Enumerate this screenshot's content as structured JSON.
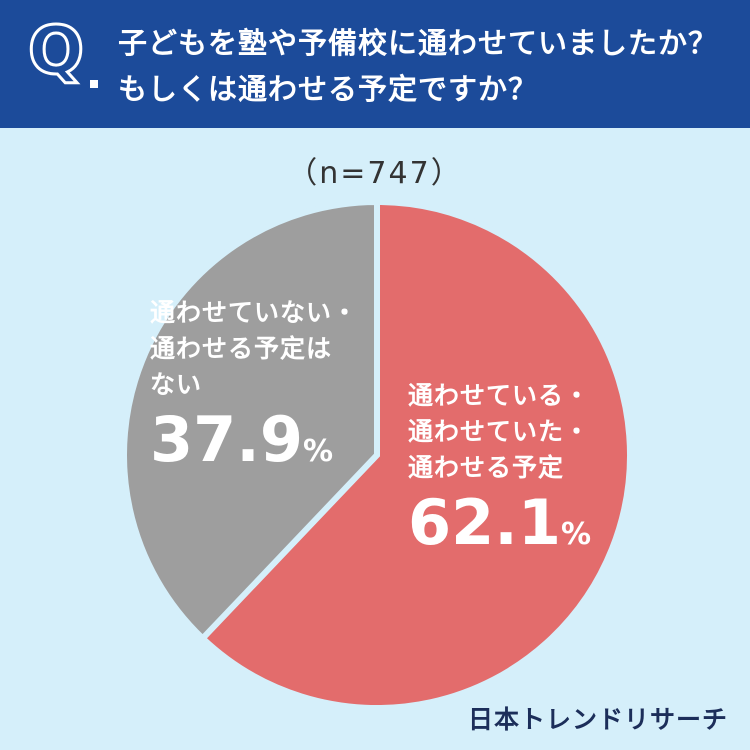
{
  "question": {
    "mark": "Q",
    "line1": "子どもを塾や予備校に通わせていましたか？",
    "line2": "もしくは通わせる予定ですか？"
  },
  "sample_size": "（n=747）",
  "chart_data": {
    "type": "pie",
    "slices": [
      {
        "label_lines": [
          "通わせている・",
          "通わせていた・",
          "通わせる予定"
        ],
        "value": 62.1,
        "value_text": "62.1",
        "color": "#e36c6c"
      },
      {
        "label_lines": [
          "通わせていない・",
          "通わせる予定は",
          "ない"
        ],
        "value": 37.9,
        "value_text": "37.9",
        "color": "#9e9e9e"
      }
    ],
    "unit": "%"
  },
  "brand": "日本トレンドリサーチ",
  "colors": {
    "header": "#1c4b9a",
    "background": "#d5effa",
    "separator": "#d5effa"
  }
}
